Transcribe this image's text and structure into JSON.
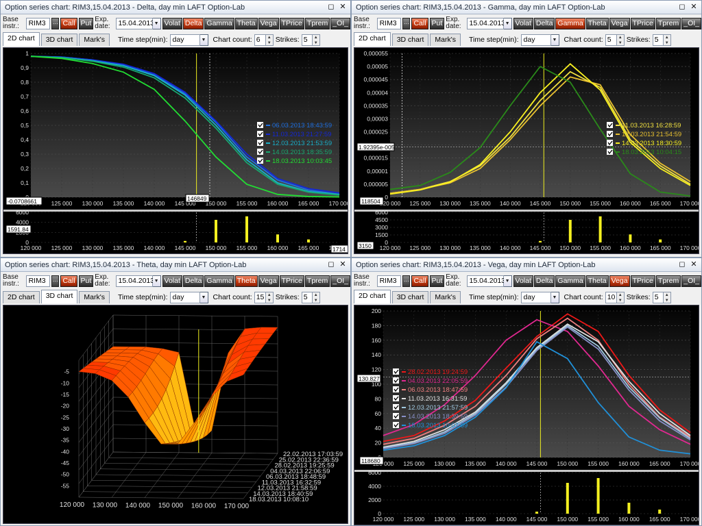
{
  "windows": [
    {
      "title": "Option series chart: RIM3,15.04.2013 - Delta, day min    LAFT Option-Lab",
      "base_label": "Base instr.:",
      "base_value": "RIM3",
      "exp_label": "Exp. date:",
      "exp_value": "15.04.2013",
      "call": "Call",
      "put": "Put",
      "buttons": [
        "Volat",
        "Delta",
        "Gamma",
        "Theta",
        "Vega",
        "TPrice",
        "Tprem",
        "_OI_"
      ],
      "active_button": "Delta",
      "tabs": [
        "2D chart",
        "3D chart",
        "Mark's"
      ],
      "active_tab": "2D chart",
      "time_step_label": "Time step(min):",
      "time_step_value": "day",
      "chart_count_label": "Chart count:",
      "chart_count_value": "6",
      "strikes_label": "Strikes:",
      "strikes_value": "5",
      "cursor_y_readout": "-0.0708661",
      "cursor_x_readout": "146849",
      "oi_readout": "1591.84",
      "oi_right_readout": "1714"
    },
    {
      "title": "Option series chart: RIM3,15.04.2013 - Gamma, day min    LAFT Option-Lab",
      "base_label": "Base instr.:",
      "base_value": "RIM3",
      "exp_label": "Exp. date:",
      "exp_value": "15.04.2013",
      "call": "Call",
      "put": "Put",
      "buttons": [
        "Volat",
        "Delta",
        "Gamma",
        "Theta",
        "Vega",
        "TPrice",
        "Tprem",
        "_OI_"
      ],
      "active_button": "Gamma",
      "tabs": [
        "2D chart",
        "3D chart",
        "Mark's"
      ],
      "active_tab": "2D chart",
      "time_step_label": "Time step(min):",
      "time_step_value": "day",
      "chart_count_label": "Chart count:",
      "chart_count_value": "5",
      "strikes_label": "Strikes:",
      "strikes_value": "5",
      "cursor_y_readout": "1.92395e-005",
      "cursor_x_readout": "118504",
      "oi_readout": "3150"
    },
    {
      "title": "Option series chart: RIM3,15.04.2013 - Theta, day min    LAFT Option-Lab",
      "base_label": "Base instr.:",
      "base_value": "RIM3",
      "exp_label": "Exp. date:",
      "exp_value": "15.04.2013",
      "call": "Call",
      "put": "Put",
      "buttons": [
        "Volat",
        "Delta",
        "Gamma",
        "Theta",
        "Vega",
        "TPrice",
        "Tprem",
        "_OI_"
      ],
      "active_button": "Theta",
      "tabs": [
        "2D chart",
        "3D chart",
        "Mark's"
      ],
      "active_tab": "3D chart",
      "time_step_label": "Time step(min):",
      "time_step_value": "day",
      "chart_count_label": "Chart count:",
      "chart_count_value": "15",
      "strikes_label": "Strikes:",
      "strikes_value": "5"
    },
    {
      "title": "Option series chart: RIM3,15.04.2013 - Vega, day min    LAFT Option-Lab",
      "base_label": "Base instr.:",
      "base_value": "RIM3",
      "exp_label": "Exp. date:",
      "exp_value": "15.04.2013",
      "call": "Call",
      "put": "Put",
      "buttons": [
        "Volat",
        "Delta",
        "Gamma",
        "Theta",
        "Vega",
        "TPrice",
        "Tprem",
        "_OI_"
      ],
      "active_button": "Vega",
      "tabs": [
        "2D chart",
        "3D chart",
        "Mark's"
      ],
      "active_tab": "2D chart",
      "time_step_label": "Time step(min):",
      "time_step_value": "day",
      "chart_count_label": "Chart count:",
      "chart_count_value": "10",
      "strikes_label": "Strikes:",
      "strikes_value": "5",
      "cursor_y_readout": "130.827",
      "cursor_x_readout": "118680"
    }
  ],
  "chart_data": [
    {
      "type": "line",
      "panel": "Delta",
      "x": [
        120000,
        125000,
        130000,
        135000,
        140000,
        145000,
        150000,
        155000,
        160000,
        165000,
        170000
      ],
      "ylim": [
        0,
        1
      ],
      "yticks": [
        "0",
        "0,1",
        "0,2",
        "0,3",
        "0,4",
        "0,5",
        "0,6",
        "0,7",
        "0,8",
        "0,9",
        "1"
      ],
      "xticks": [
        "120 000",
        "125 000",
        "130 000",
        "135 000",
        "140 000",
        "145 000",
        "150 000",
        "155 000",
        "160 000",
        "165 000",
        "170 000"
      ],
      "cursor_x": 146849,
      "series": [
        {
          "name": "06.03.2013 18:43:59",
          "color": "#1e6fe0",
          "values": [
            0.98,
            0.975,
            0.955,
            0.92,
            0.85,
            0.72,
            0.52,
            0.28,
            0.12,
            0.05,
            0.02
          ]
        },
        {
          "name": "11.03.2013 21:27:59",
          "color": "#1428d8",
          "values": [
            0.98,
            0.975,
            0.955,
            0.925,
            0.86,
            0.73,
            0.53,
            0.3,
            0.13,
            0.06,
            0.03
          ]
        },
        {
          "name": "12.03.2013 21:53:59",
          "color": "#19b0c8",
          "values": [
            0.98,
            0.972,
            0.95,
            0.915,
            0.845,
            0.71,
            0.5,
            0.26,
            0.1,
            0.04,
            0.02
          ]
        },
        {
          "name": "14.03.2013 18:35:59",
          "color": "#18a870",
          "values": [
            0.98,
            0.97,
            0.945,
            0.905,
            0.83,
            0.69,
            0.48,
            0.24,
            0.09,
            0.035,
            0.015
          ]
        },
        {
          "name": "18.03.2013 10:03:45",
          "color": "#22dd33",
          "values": [
            0.98,
            0.965,
            0.93,
            0.87,
            0.75,
            0.53,
            0.28,
            0.09,
            0.02,
            0.005,
            0.002
          ]
        }
      ],
      "oi": {
        "values": [
          0,
          0,
          0,
          0,
          0,
          300,
          4500,
          5200,
          1600,
          600,
          0
        ],
        "yticks": [
          "0",
          "2000",
          "4000",
          "6000"
        ]
      }
    },
    {
      "type": "line",
      "panel": "Gamma",
      "x": [
        120000,
        125000,
        130000,
        135000,
        140000,
        145000,
        150000,
        155000,
        160000,
        165000,
        170000
      ],
      "ylim": [
        0,
        5.5e-05
      ],
      "yticks": [
        "0",
        "0,000005",
        "0,00001",
        "0,000015",
        "0,00002",
        "0,000025",
        "0,00003",
        "0,000035",
        "0,00004",
        "0,000045",
        "0,00005",
        "0,000055"
      ],
      "xticks": [
        "120 000",
        "125 000",
        "130 000",
        "135 000",
        "140 000",
        "145 000",
        "150 000",
        "155 000",
        "160 000",
        "165 000",
        "170 000"
      ],
      "cursor_x": 145600,
      "series": [
        {
          "name": "11.03.2013 16:28:59",
          "color": "#f0e040",
          "values": [
            1.5e-06,
            3e-06,
            6e-06,
            1.2e-05,
            2.3e-05,
            3.7e-05,
            4.8e-05,
            4.2e-05,
            2.2e-05,
            1.2e-05,
            5e-06
          ]
        },
        {
          "name": "12.03.2013 21:54:59",
          "color": "#e8c030",
          "values": [
            1.5e-06,
            3e-06,
            5.5e-06,
            1.1e-05,
            2.2e-05,
            3.5e-05,
            4.6e-05,
            4.3e-05,
            2.4e-05,
            1.3e-05,
            6e-06
          ]
        },
        {
          "name": "14.03.2013 18:30:59",
          "color": "#f8f020",
          "values": [
            1.2e-06,
            2.8e-06,
            5.8e-06,
            1.25e-05,
            2.5e-05,
            4e-05,
            5.1e-05,
            4.1e-05,
            2.1e-05,
            1.1e-05,
            4.5e-06
          ]
        },
        {
          "name": "18.03.2013 10:04:15",
          "color": "#2a8a1a",
          "values": [
            3e-06,
            4.5e-06,
            9.5e-06,
            1.9e-05,
            3.5e-05,
            5e-05,
            4.4e-05,
            2.6e-05,
            9e-06,
            2e-06,
            5e-07
          ]
        }
      ],
      "oi": {
        "values": [
          0,
          0,
          0,
          0,
          0,
          300,
          4500,
          5200,
          1600,
          600,
          0
        ],
        "yticks": [
          "0",
          "1500",
          "3000",
          "4500",
          "6000"
        ]
      }
    },
    {
      "type": "surface",
      "panel": "Theta",
      "zticks": [
        "-5",
        "-10",
        "-15",
        "-20",
        "-25",
        "-30",
        "-35",
        "-40",
        "-45",
        "-50",
        "-55"
      ],
      "xticks": [
        "120 000",
        "130 000",
        "140 000",
        "150 000",
        "160 000",
        "170 000"
      ],
      "dates": [
        "22.02.2013 17:03:59",
        "25.02.2013 22:36:59",
        "28.02.2013 19:25:59",
        "04.03.2013 22:06:59",
        "06.03.2013 18:48:59",
        "11.03.2013 16:32:59",
        "12.03.2013 21:58:59",
        "14.03.2013 18:40:59",
        "18.03.2013 10:08:10"
      ]
    },
    {
      "type": "line",
      "panel": "Vega",
      "x": [
        120000,
        125000,
        130000,
        135000,
        140000,
        145000,
        150000,
        155000,
        160000,
        165000,
        170000
      ],
      "ylim": [
        0,
        200
      ],
      "yticks": [
        "0",
        "20",
        "40",
        "60",
        "80",
        "100",
        "120",
        "140",
        "160",
        "180",
        "200"
      ],
      "xticks": [
        "120 000",
        "125 000",
        "130 000",
        "135 000",
        "140 000",
        "145 000",
        "150 000",
        "155 000",
        "160 000",
        "165 000",
        "170 000"
      ],
      "cursor_x": 145600,
      "series": [
        {
          "name": "28.02.2013 19:24:59",
          "color": "#ee1818",
          "values": [
            22,
            30,
            50,
            78,
            122,
            165,
            196,
            172,
            112,
            65,
            34
          ]
        },
        {
          "name": "04.03.2013 22:05:59",
          "color": "#e02890",
          "values": [
            30,
            45,
            72,
            112,
            160,
            188,
            172,
            125,
            70,
            38,
            18
          ]
        },
        {
          "name": "06.03.2013 18:47:59",
          "color": "#f08080",
          "values": [
            18,
            26,
            44,
            70,
            112,
            162,
            190,
            160,
            100,
            55,
            28
          ]
        },
        {
          "name": "11.03.2013 16:31:59",
          "color": "#e0e0e0",
          "values": [
            14,
            22,
            38,
            62,
            102,
            150,
            182,
            158,
            104,
            60,
            30
          ]
        },
        {
          "name": "12.03.2013 21:57:59",
          "color": "#a0c8e0",
          "values": [
            13,
            20,
            35,
            60,
            100,
            148,
            180,
            152,
            96,
            54,
            26
          ]
        },
        {
          "name": "14.03.2013 18:39:59",
          "color": "#8890c8",
          "values": [
            12,
            19,
            33,
            58,
            96,
            146,
            178,
            148,
            92,
            50,
            24
          ]
        },
        {
          "name": "18.03.2013 10:07:59",
          "color": "#2090d8",
          "values": [
            10,
            16,
            30,
            55,
            95,
            158,
            135,
            75,
            28,
            10,
            5
          ]
        }
      ],
      "oi": {
        "values": [
          0,
          0,
          0,
          0,
          0,
          300,
          4500,
          5200,
          1600,
          600,
          0
        ],
        "yticks": [
          "0",
          "2000",
          "4000",
          "6000"
        ]
      }
    }
  ]
}
